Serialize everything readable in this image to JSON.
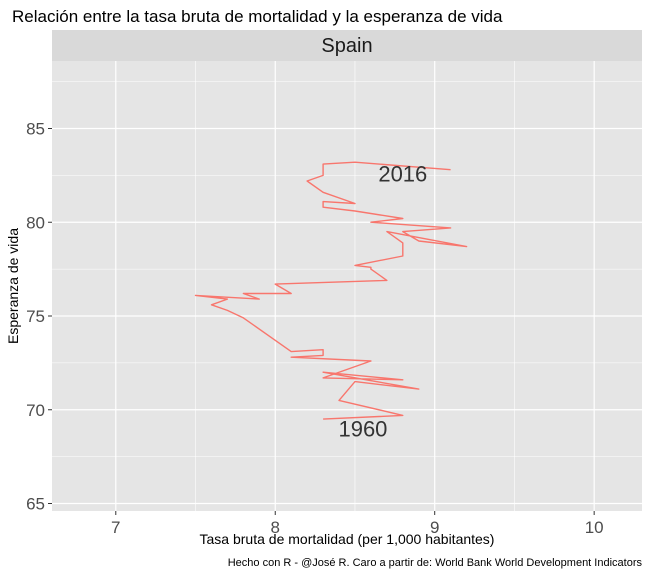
{
  "title": "Relación entre la tasa bruta de mortalidad y la esperanza de vida",
  "caption": "Hecho con R - @José R. Caro a partir de: World Bank World Development Indicators",
  "colors": {
    "panel_bg": "#e5e5e5",
    "strip_bg": "#d9d9d9",
    "grid": "#ffffff",
    "line": "#f8766d",
    "text": "#1a1a1a"
  },
  "chart_data": {
    "type": "line",
    "facet": "Spain",
    "xlabel": "Tasa bruta de mortalidad (per 1,000 habitantes)",
    "ylabel": "Esperanza de vida",
    "xlim": [
      6.6,
      10.3
    ],
    "ylim": [
      64.6,
      88.6
    ],
    "x_ticks": [
      "7",
      "8",
      "9",
      "10"
    ],
    "y_ticks": [
      "65",
      "70",
      "75",
      "80",
      "85"
    ],
    "grid": true,
    "legend": "none",
    "annotations": [
      {
        "label": "2016",
        "x": 8.8,
        "y": 82.6
      },
      {
        "label": "1960",
        "x": 8.55,
        "y": 69.0
      }
    ],
    "series": [
      {
        "x": [
          8.3,
          8.8,
          8.4,
          8.5,
          8.5,
          8.9,
          8.3,
          8.8,
          8.3,
          8.6,
          8.1,
          8.3,
          8.3,
          8.1,
          7.8,
          7.7,
          7.6,
          7.7,
          7.5,
          7.9,
          7.8,
          8.1,
          8.0,
          8.7,
          8.6,
          8.6,
          8.5,
          8.8,
          8.8,
          8.7,
          9.2,
          8.9,
          8.8,
          9.1,
          8.6,
          8.8,
          8.5,
          8.3,
          8.3,
          8.5,
          8.3,
          8.2,
          8.3,
          8.3,
          8.3,
          8.5,
          9.1
        ],
        "y": [
          69.5,
          69.7,
          70.5,
          71.5,
          71.5,
          71.1,
          72.0,
          71.6,
          71.7,
          72.6,
          72.8,
          72.9,
          73.2,
          73.1,
          74.9,
          75.3,
          75.6,
          75.9,
          76.1,
          75.9,
          76.2,
          76.2,
          76.7,
          76.9,
          77.5,
          77.6,
          77.7,
          78.2,
          78.9,
          79.5,
          78.7,
          79.0,
          79.5,
          79.7,
          80.0,
          80.2,
          80.6,
          80.8,
          81.1,
          81.0,
          81.6,
          82.2,
          82.5,
          82.5,
          83.1,
          83.2,
          82.8
        ]
      }
    ]
  }
}
